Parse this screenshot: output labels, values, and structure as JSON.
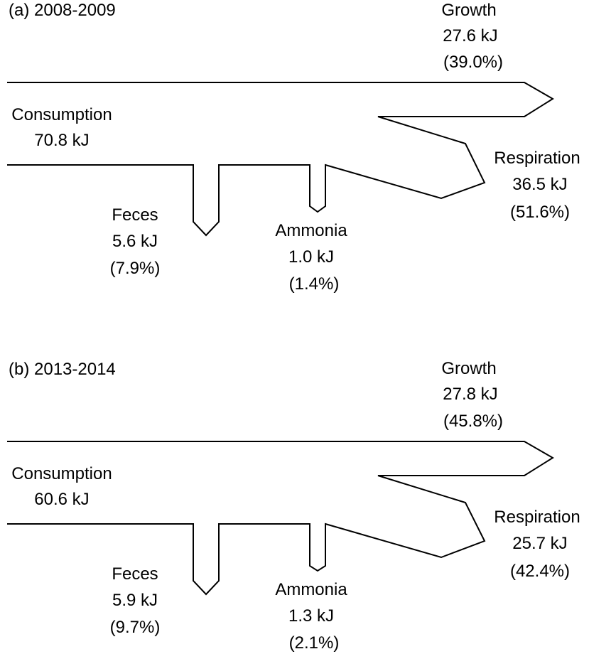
{
  "panels": [
    {
      "title": "(a) 2008-2009",
      "consumption": {
        "label": "Consumption",
        "value": "70.8 kJ"
      },
      "growth": {
        "label": "Growth",
        "value": "27.6 kJ",
        "percent": "(39.0%)"
      },
      "respiration": {
        "label": "Respiration",
        "value": "36.5 kJ",
        "percent": "(51.6%)"
      },
      "feces": {
        "label": "Feces",
        "value": "5.6 kJ",
        "percent": "(7.9%)"
      },
      "ammonia": {
        "label": "Ammonia",
        "value": "1.0 kJ",
        "percent": "(1.4%)"
      }
    },
    {
      "title": "(b) 2013-2014",
      "consumption": {
        "label": "Consumption",
        "value": "60.6 kJ"
      },
      "growth": {
        "label": "Growth",
        "value": "27.8 kJ",
        "percent": "(45.8%)"
      },
      "respiration": {
        "label": "Respiration",
        "value": "25.7 kJ",
        "percent": "(42.4%)"
      },
      "feces": {
        "label": "Feces",
        "value": "5.9 kJ",
        "percent": "(9.7%)"
      },
      "ammonia": {
        "label": "Ammonia",
        "value": "1.3 kJ",
        "percent": "(2.1%)"
      }
    }
  ]
}
